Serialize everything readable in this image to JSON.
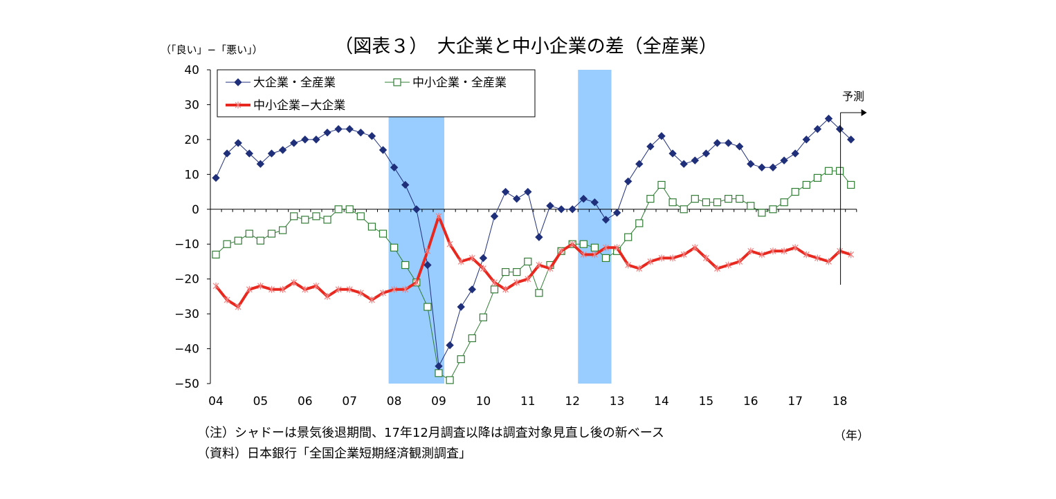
{
  "chart_data": {
    "type": "line",
    "title": "（図表３）　大企業と中小企業の差（全産業）",
    "ylabel": "（「良い」−「悪い」）",
    "xlabel": "（年）",
    "ylim": [
      -50,
      40
    ],
    "yticks": [
      40,
      30,
      20,
      10,
      0,
      -10,
      -20,
      -30,
      -40,
      -50
    ],
    "ytick_labels": [
      "40",
      "30",
      "20",
      "10",
      "0",
      "−10",
      "−20",
      "−30",
      "−40",
      "−50"
    ],
    "x_tick_labels": [
      "04",
      "05",
      "06",
      "07",
      "08",
      "09",
      "10",
      "11",
      "12",
      "13",
      "14",
      "15",
      "16",
      "17",
      "18"
    ],
    "forecast_label": "予測",
    "shaded_periods_note": "シャドーは景気後退期間",
    "shaded_periods": [
      [
        15.5,
        20.5
      ],
      [
        32.5,
        35.5
      ]
    ],
    "legend_position": "top-left",
    "grid": false,
    "series": [
      {
        "name": "大企業・全産業",
        "color": "#1f2f7a",
        "marker": "diamond",
        "values": [
          9,
          16,
          19,
          16,
          13,
          16,
          17,
          19,
          20,
          20,
          22,
          23,
          23,
          22,
          21,
          17,
          12,
          7,
          0,
          -16,
          -45,
          -39,
          -28,
          -23,
          -14,
          -2,
          5,
          3,
          5,
          -8,
          1,
          0,
          0,
          3,
          2,
          -3,
          -1,
          8,
          13,
          18,
          21,
          16,
          13,
          14,
          16,
          19,
          19,
          18,
          13,
          12,
          12,
          14,
          16,
          20,
          23,
          26,
          23,
          20
        ]
      },
      {
        "name": "中小企業・全産業",
        "color": "#2e7d32",
        "marker": "square",
        "values": [
          -13,
          -10,
          -9,
          -7,
          -9,
          -7,
          -6,
          -2,
          -3,
          -2,
          -3,
          0,
          0,
          -2,
          -5,
          -7,
          -11,
          -16,
          -21,
          -28,
          -47,
          -49,
          -43,
          -37,
          -31,
          -23,
          -18,
          -18,
          -15,
          -24,
          -16,
          -12,
          -10,
          -10,
          -11,
          -14,
          -12,
          -8,
          -4,
          3,
          7,
          2,
          0,
          3,
          2,
          2,
          3,
          3,
          1,
          -1,
          0,
          2,
          5,
          7,
          9,
          11,
          11,
          7
        ]
      },
      {
        "name": "中小企業−大企業",
        "color": "#e8281e",
        "marker": "x",
        "values": [
          -22,
          -26,
          -28,
          -23,
          -22,
          -23,
          -23,
          -21,
          -23,
          -22,
          -25,
          -23,
          -23,
          -24,
          -26,
          -24,
          -23,
          -23,
          -21,
          -12,
          -2,
          -10,
          -15,
          -14,
          -17,
          -21,
          -23,
          -21,
          -20,
          -16,
          -17,
          -12,
          -10,
          -13,
          -13,
          -11,
          -11,
          -16,
          -17,
          -15,
          -14,
          -14,
          -13,
          -11,
          -14,
          -17,
          -16,
          -15,
          -12,
          -13,
          -12,
          -12,
          -11,
          -13,
          -14,
          -15,
          -12,
          -13
        ]
      }
    ]
  },
  "notes": {
    "line1": "（注）シャドーは景気後退期間、17年12月調査以降は調査対象見直し後の新ベース",
    "line2": "（資料）日本銀行「全国企業短期経済観測調査」"
  },
  "colors": {
    "shade": "#99ccff",
    "axis": "#000000"
  }
}
